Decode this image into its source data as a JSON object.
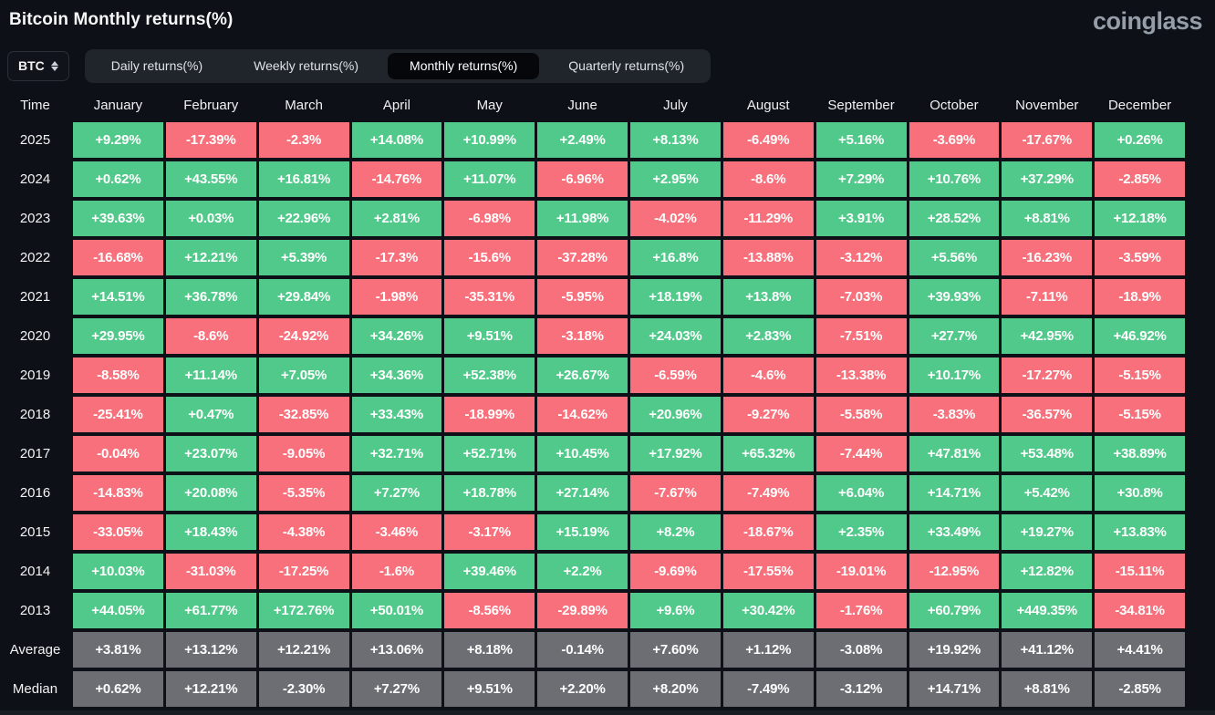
{
  "page": {
    "title": "Bitcoin Monthly returns(%)",
    "brand": "coinglass"
  },
  "controls": {
    "symbol_select": {
      "value": "BTC"
    },
    "tabs": [
      {
        "label": "Daily returns(%)",
        "active": false
      },
      {
        "label": "Weekly returns(%)",
        "active": false
      },
      {
        "label": "Monthly returns(%)",
        "active": true
      },
      {
        "label": "Quarterly returns(%)",
        "active": false
      }
    ]
  },
  "colors": {
    "positive": "#50c98a",
    "negative": "#f7707b",
    "summary": "#6c6e74"
  },
  "table": {
    "columns": [
      "Time",
      "January",
      "February",
      "March",
      "April",
      "May",
      "June",
      "July",
      "August",
      "September",
      "October",
      "November",
      "December"
    ],
    "rows": [
      {
        "label": "2025",
        "type": "year",
        "values": [
          "+9.29%",
          "-17.39%",
          "-2.3%",
          "+14.08%",
          "+10.99%",
          "+2.49%",
          "+8.13%",
          "-6.49%",
          "+5.16%",
          "-3.69%",
          "-17.67%",
          "+0.26%"
        ]
      },
      {
        "label": "2024",
        "type": "year",
        "values": [
          "+0.62%",
          "+43.55%",
          "+16.81%",
          "-14.76%",
          "+11.07%",
          "-6.96%",
          "+2.95%",
          "-8.6%",
          "+7.29%",
          "+10.76%",
          "+37.29%",
          "-2.85%"
        ]
      },
      {
        "label": "2023",
        "type": "year",
        "values": [
          "+39.63%",
          "+0.03%",
          "+22.96%",
          "+2.81%",
          "-6.98%",
          "+11.98%",
          "-4.02%",
          "-11.29%",
          "+3.91%",
          "+28.52%",
          "+8.81%",
          "+12.18%"
        ]
      },
      {
        "label": "2022",
        "type": "year",
        "values": [
          "-16.68%",
          "+12.21%",
          "+5.39%",
          "-17.3%",
          "-15.6%",
          "-37.28%",
          "+16.8%",
          "-13.88%",
          "-3.12%",
          "+5.56%",
          "-16.23%",
          "-3.59%"
        ]
      },
      {
        "label": "2021",
        "type": "year",
        "values": [
          "+14.51%",
          "+36.78%",
          "+29.84%",
          "-1.98%",
          "-35.31%",
          "-5.95%",
          "+18.19%",
          "+13.8%",
          "-7.03%",
          "+39.93%",
          "-7.11%",
          "-18.9%"
        ]
      },
      {
        "label": "2020",
        "type": "year",
        "values": [
          "+29.95%",
          "-8.6%",
          "-24.92%",
          "+34.26%",
          "+9.51%",
          "-3.18%",
          "+24.03%",
          "+2.83%",
          "-7.51%",
          "+27.7%",
          "+42.95%",
          "+46.92%"
        ]
      },
      {
        "label": "2019",
        "type": "year",
        "values": [
          "-8.58%",
          "+11.14%",
          "+7.05%",
          "+34.36%",
          "+52.38%",
          "+26.67%",
          "-6.59%",
          "-4.6%",
          "-13.38%",
          "+10.17%",
          "-17.27%",
          "-5.15%"
        ]
      },
      {
        "label": "2018",
        "type": "year",
        "values": [
          "-25.41%",
          "+0.47%",
          "-32.85%",
          "+33.43%",
          "-18.99%",
          "-14.62%",
          "+20.96%",
          "-9.27%",
          "-5.58%",
          "-3.83%",
          "-36.57%",
          "-5.15%"
        ]
      },
      {
        "label": "2017",
        "type": "year",
        "values": [
          "-0.04%",
          "+23.07%",
          "-9.05%",
          "+32.71%",
          "+52.71%",
          "+10.45%",
          "+17.92%",
          "+65.32%",
          "-7.44%",
          "+47.81%",
          "+53.48%",
          "+38.89%"
        ]
      },
      {
        "label": "2016",
        "type": "year",
        "values": [
          "-14.83%",
          "+20.08%",
          "-5.35%",
          "+7.27%",
          "+18.78%",
          "+27.14%",
          "-7.67%",
          "-7.49%",
          "+6.04%",
          "+14.71%",
          "+5.42%",
          "+30.8%"
        ]
      },
      {
        "label": "2015",
        "type": "year",
        "values": [
          "-33.05%",
          "+18.43%",
          "-4.38%",
          "-3.46%",
          "-3.17%",
          "+15.19%",
          "+8.2%",
          "-18.67%",
          "+2.35%",
          "+33.49%",
          "+19.27%",
          "+13.83%"
        ]
      },
      {
        "label": "2014",
        "type": "year",
        "values": [
          "+10.03%",
          "-31.03%",
          "-17.25%",
          "-1.6%",
          "+39.46%",
          "+2.2%",
          "-9.69%",
          "-17.55%",
          "-19.01%",
          "-12.95%",
          "+12.82%",
          "-15.11%"
        ]
      },
      {
        "label": "2013",
        "type": "year",
        "values": [
          "+44.05%",
          "+61.77%",
          "+172.76%",
          "+50.01%",
          "-8.56%",
          "-29.89%",
          "+9.6%",
          "+30.42%",
          "-1.76%",
          "+60.79%",
          "+449.35%",
          "-34.81%"
        ]
      },
      {
        "label": "Average",
        "type": "summary",
        "values": [
          "+3.81%",
          "+13.12%",
          "+12.21%",
          "+13.06%",
          "+8.18%",
          "-0.14%",
          "+7.60%",
          "+1.12%",
          "-3.08%",
          "+19.92%",
          "+41.12%",
          "+4.41%"
        ]
      },
      {
        "label": "Median",
        "type": "summary",
        "values": [
          "+0.62%",
          "+12.21%",
          "-2.30%",
          "+7.27%",
          "+9.51%",
          "+2.20%",
          "+8.20%",
          "-7.49%",
          "-3.12%",
          "+14.71%",
          "+8.81%",
          "-2.85%"
        ]
      }
    ]
  }
}
